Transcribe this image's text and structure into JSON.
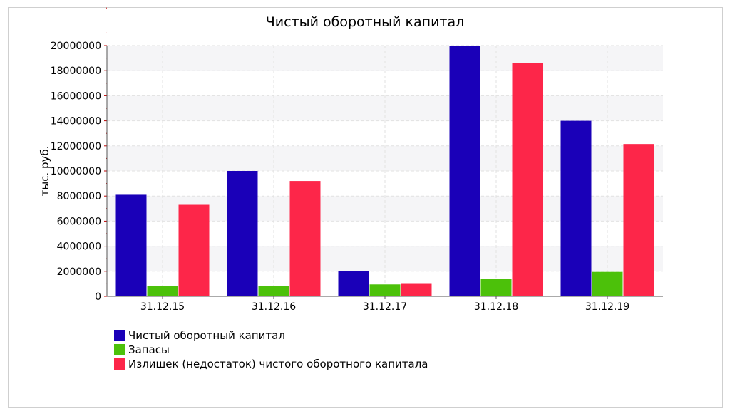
{
  "chart_data": {
    "type": "bar",
    "title": "Чистый оборотный капитал",
    "ylabel": "тыс. руб.",
    "xlabel": "",
    "categories": [
      "31.12.15",
      "31.12.16",
      "31.12.17",
      "31.12.18",
      "31.12.19"
    ],
    "ylim": [
      0,
      20000000
    ],
    "yticks": [
      "0",
      "2000000",
      "4000000",
      "6000000",
      "8000000",
      "10000000",
      "12000000",
      "14000000",
      "16000000",
      "18000000",
      "20000000"
    ],
    "grid": true,
    "legend_position": "bottom-left",
    "series": [
      {
        "name": "Чистый оборотный капитал",
        "color": "#1a00b8",
        "values": [
          8100000,
          10000000,
          2000000,
          20000000,
          14000000
        ]
      },
      {
        "name": "Запасы",
        "color": "#4cc10a",
        "values": [
          850000,
          850000,
          950000,
          1400000,
          1950000
        ]
      },
      {
        "name": "Излишек (недостаток) чистого оборотного капитала",
        "color": "#fd2649",
        "values": [
          7300000,
          9200000,
          1050000,
          18600000,
          12150000
        ]
      }
    ]
  }
}
